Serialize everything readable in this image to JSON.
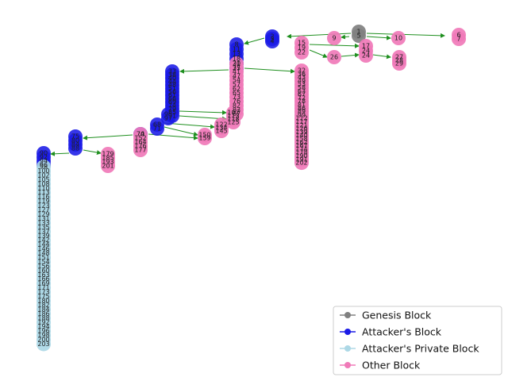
{
  "legend": {
    "items": [
      {
        "label": "Genesis Block",
        "type": "genesis"
      },
      {
        "label": "Attacker's Block",
        "type": "attacker"
      },
      {
        "label": "Attacker's Private Block",
        "type": "private"
      },
      {
        "label": "Other Block",
        "type": "other"
      }
    ]
  },
  "colors": {
    "genesis": "#808080",
    "attacker": "#1a1ae6",
    "private": "#add8e6",
    "other": "#f07ab8",
    "edge": "#1f8f1f"
  },
  "graph": {
    "columns": [
      {
        "type": "genesis",
        "labels": [
          "1",
          "5"
        ]
      },
      {
        "type": "other",
        "labels": [
          "6",
          "7"
        ]
      },
      {
        "type": "other",
        "labels": [
          "9"
        ]
      },
      {
        "type": "other",
        "labels": [
          "10"
        ]
      },
      {
        "type": "attacker",
        "labels": [
          "2",
          "3",
          "4"
        ]
      },
      {
        "type": "other",
        "labels": [
          "15",
          "19",
          "22"
        ]
      },
      {
        "type": "other",
        "labels": [
          "17",
          "24",
          "24"
        ]
      },
      {
        "type": "other",
        "labels": [
          "26"
        ]
      },
      {
        "type": "other",
        "labels": [
          "27",
          "28",
          "29"
        ]
      },
      {
        "type": "attacker",
        "labels": [
          "8",
          "11",
          "13",
          "18",
          "20",
          "25"
        ]
      },
      {
        "type": "other",
        "labels": [
          "31",
          "37",
          "41",
          "47",
          "54",
          "57",
          "62",
          "65",
          "73",
          "76",
          "82",
          "83",
          "87"
        ]
      },
      {
        "type": "other",
        "labels": [
          "32",
          "36",
          "43",
          "49",
          "53",
          "58",
          "63",
          "67",
          "72",
          "78",
          "81",
          "86",
          "89",
          "99",
          "112",
          "117",
          "121",
          "126",
          "139",
          "140",
          "158",
          "162",
          "167",
          "174",
          "178",
          "190",
          "191",
          "202"
        ]
      },
      {
        "type": "attacker",
        "labels": [
          "33",
          "38",
          "40",
          "44",
          "48",
          "51",
          "56",
          "61",
          "66",
          "69",
          "74",
          "79",
          "85",
          "91"
        ]
      },
      {
        "type": "attacker",
        "labels": [
          "95",
          "97"
        ]
      },
      {
        "type": "other",
        "labels": [
          "107",
          "113",
          "118",
          "125"
        ]
      },
      {
        "type": "attacker",
        "labels": [
          "68",
          "71"
        ]
      },
      {
        "type": "other",
        "labels": [
          "122",
          "134",
          "145"
        ]
      },
      {
        "type": "other",
        "labels": [
          "150",
          "159"
        ]
      },
      {
        "type": "attacker",
        "labels": [
          "70"
        ]
      },
      {
        "type": "other",
        "labels": [
          "74",
          "152",
          "164",
          "176",
          "177"
        ]
      },
      {
        "type": "attacker",
        "labels": [
          "75",
          "80",
          "84",
          "88"
        ]
      },
      {
        "type": "other",
        "labels": [
          "179",
          "185",
          "193",
          "201"
        ]
      },
      {
        "type": "attacker",
        "labels": [
          "90",
          "92",
          "94",
          "96"
        ]
      },
      {
        "type": "private",
        "labels": [
          "98",
          "100",
          "102",
          "105",
          "108",
          "110",
          "113",
          "116",
          "119",
          "123",
          "127",
          "129",
          "131",
          "133",
          "135",
          "137",
          "139",
          "142",
          "144",
          "146",
          "148",
          "151",
          "154",
          "156",
          "160",
          "163",
          "166",
          "169",
          "171",
          "173",
          "175",
          "180",
          "182",
          "184",
          "186",
          "188",
          "192",
          "194",
          "196",
          "198",
          "200",
          "203"
        ]
      }
    ]
  }
}
